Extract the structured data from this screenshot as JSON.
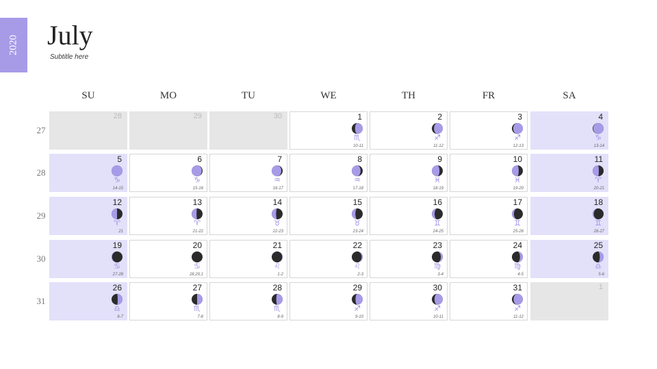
{
  "year": "2020",
  "title": "July",
  "subtitle": "Subtitle here",
  "colors": {
    "accent": "#a79be8",
    "moon_dark": "#2b2b2b",
    "weekend": "#e3e0fa",
    "muted": "#e6e6e6"
  },
  "days_of_week": [
    "SU",
    "MO",
    "TU",
    "WE",
    "TH",
    "FR",
    "SA"
  ],
  "weeks": [
    {
      "number": "27",
      "days": [
        {
          "day": "28",
          "muted": true
        },
        {
          "day": "29",
          "muted": true
        },
        {
          "day": "30",
          "muted": true
        },
        {
          "day": "1",
          "illum": 0.7,
          "waxing": true,
          "sign": "♏︎",
          "range": "10-11"
        },
        {
          "day": "2",
          "illum": 0.8,
          "waxing": true,
          "sign": "♐︎",
          "range": "11-12"
        },
        {
          "day": "3",
          "illum": 0.88,
          "waxing": true,
          "sign": "♐︎",
          "range": "12-13"
        },
        {
          "day": "4",
          "illum": 0.95,
          "waxing": true,
          "sign": "♑︎",
          "range": "13-14",
          "weekend": true
        }
      ]
    },
    {
      "number": "28",
      "days": [
        {
          "day": "5",
          "illum": 1,
          "waxing": false,
          "sign": "♑︎",
          "range": "14-15",
          "weekend": true
        },
        {
          "day": "6",
          "illum": 0.93,
          "waxing": false,
          "sign": "♑︎",
          "range": "15-16"
        },
        {
          "day": "7",
          "illum": 0.88,
          "waxing": false,
          "sign": "♒︎",
          "range": "16-17"
        },
        {
          "day": "8",
          "illum": 0.8,
          "waxing": false,
          "sign": "♒︎",
          "range": "17-18"
        },
        {
          "day": "9",
          "illum": 0.7,
          "waxing": false,
          "sign": "♓︎",
          "range": "18-19"
        },
        {
          "day": "10",
          "illum": 0.62,
          "waxing": false,
          "sign": "♓︎",
          "range": "19-20"
        },
        {
          "day": "11",
          "illum": 0.56,
          "waxing": false,
          "sign": "♈︎",
          "range": "20-21",
          "weekend": true
        }
      ]
    },
    {
      "number": "29",
      "days": [
        {
          "day": "12",
          "illum": 0.5,
          "waxing": false,
          "sign": "♈︎",
          "range": "21",
          "weekend": true
        },
        {
          "day": "13",
          "illum": 0.45,
          "waxing": false,
          "sign": "♈︎",
          "range": "21-22"
        },
        {
          "day": "14",
          "illum": 0.4,
          "waxing": false,
          "sign": "♉︎",
          "range": "22-23"
        },
        {
          "day": "15",
          "illum": 0.33,
          "waxing": false,
          "sign": "♉︎",
          "range": "23-24"
        },
        {
          "day": "16",
          "illum": 0.25,
          "waxing": false,
          "sign": "♊︎",
          "range": "24-25"
        },
        {
          "day": "17",
          "illum": 0.18,
          "waxing": false,
          "sign": "♊︎",
          "range": "25-26"
        },
        {
          "day": "18",
          "illum": 0.1,
          "waxing": false,
          "sign": "♊︎",
          "range": "26-27",
          "weekend": true
        }
      ]
    },
    {
      "number": "30",
      "days": [
        {
          "day": "19",
          "illum": 0.05,
          "waxing": false,
          "sign": "♋︎",
          "range": "27-28",
          "weekend": true
        },
        {
          "day": "20",
          "illum": 0,
          "waxing": true,
          "sign": "♋︎",
          "range": "28,29,1"
        },
        {
          "day": "21",
          "illum": 0.04,
          "waxing": true,
          "sign": "♌︎",
          "range": "1-2"
        },
        {
          "day": "22",
          "illum": 0.1,
          "waxing": true,
          "sign": "♌︎",
          "range": "2-3"
        },
        {
          "day": "23",
          "illum": 0.18,
          "waxing": true,
          "sign": "♍︎",
          "range": "3-4"
        },
        {
          "day": "24",
          "illum": 0.26,
          "waxing": true,
          "sign": "♍︎",
          "range": "4-5"
        },
        {
          "day": "25",
          "illum": 0.35,
          "waxing": true,
          "sign": "♎︎",
          "range": "5-6",
          "weekend": true
        }
      ]
    },
    {
      "number": "31",
      "days": [
        {
          "day": "26",
          "illum": 0.44,
          "waxing": true,
          "sign": "♎︎",
          "range": "6-7",
          "weekend": true
        },
        {
          "day": "27",
          "illum": 0.5,
          "waxing": true,
          "sign": "♏︎",
          "range": "7-8"
        },
        {
          "day": "28",
          "illum": 0.58,
          "waxing": true,
          "sign": "♏︎",
          "range": "8-9"
        },
        {
          "day": "29",
          "illum": 0.66,
          "waxing": true,
          "sign": "♐︎",
          "range": "9-10"
        },
        {
          "day": "30",
          "illum": 0.76,
          "waxing": true,
          "sign": "♐︎",
          "range": "10-11"
        },
        {
          "day": "31",
          "illum": 0.85,
          "waxing": true,
          "sign": "♐︎",
          "range": "11-12"
        },
        {
          "day": "1",
          "muted": true
        }
      ]
    }
  ]
}
